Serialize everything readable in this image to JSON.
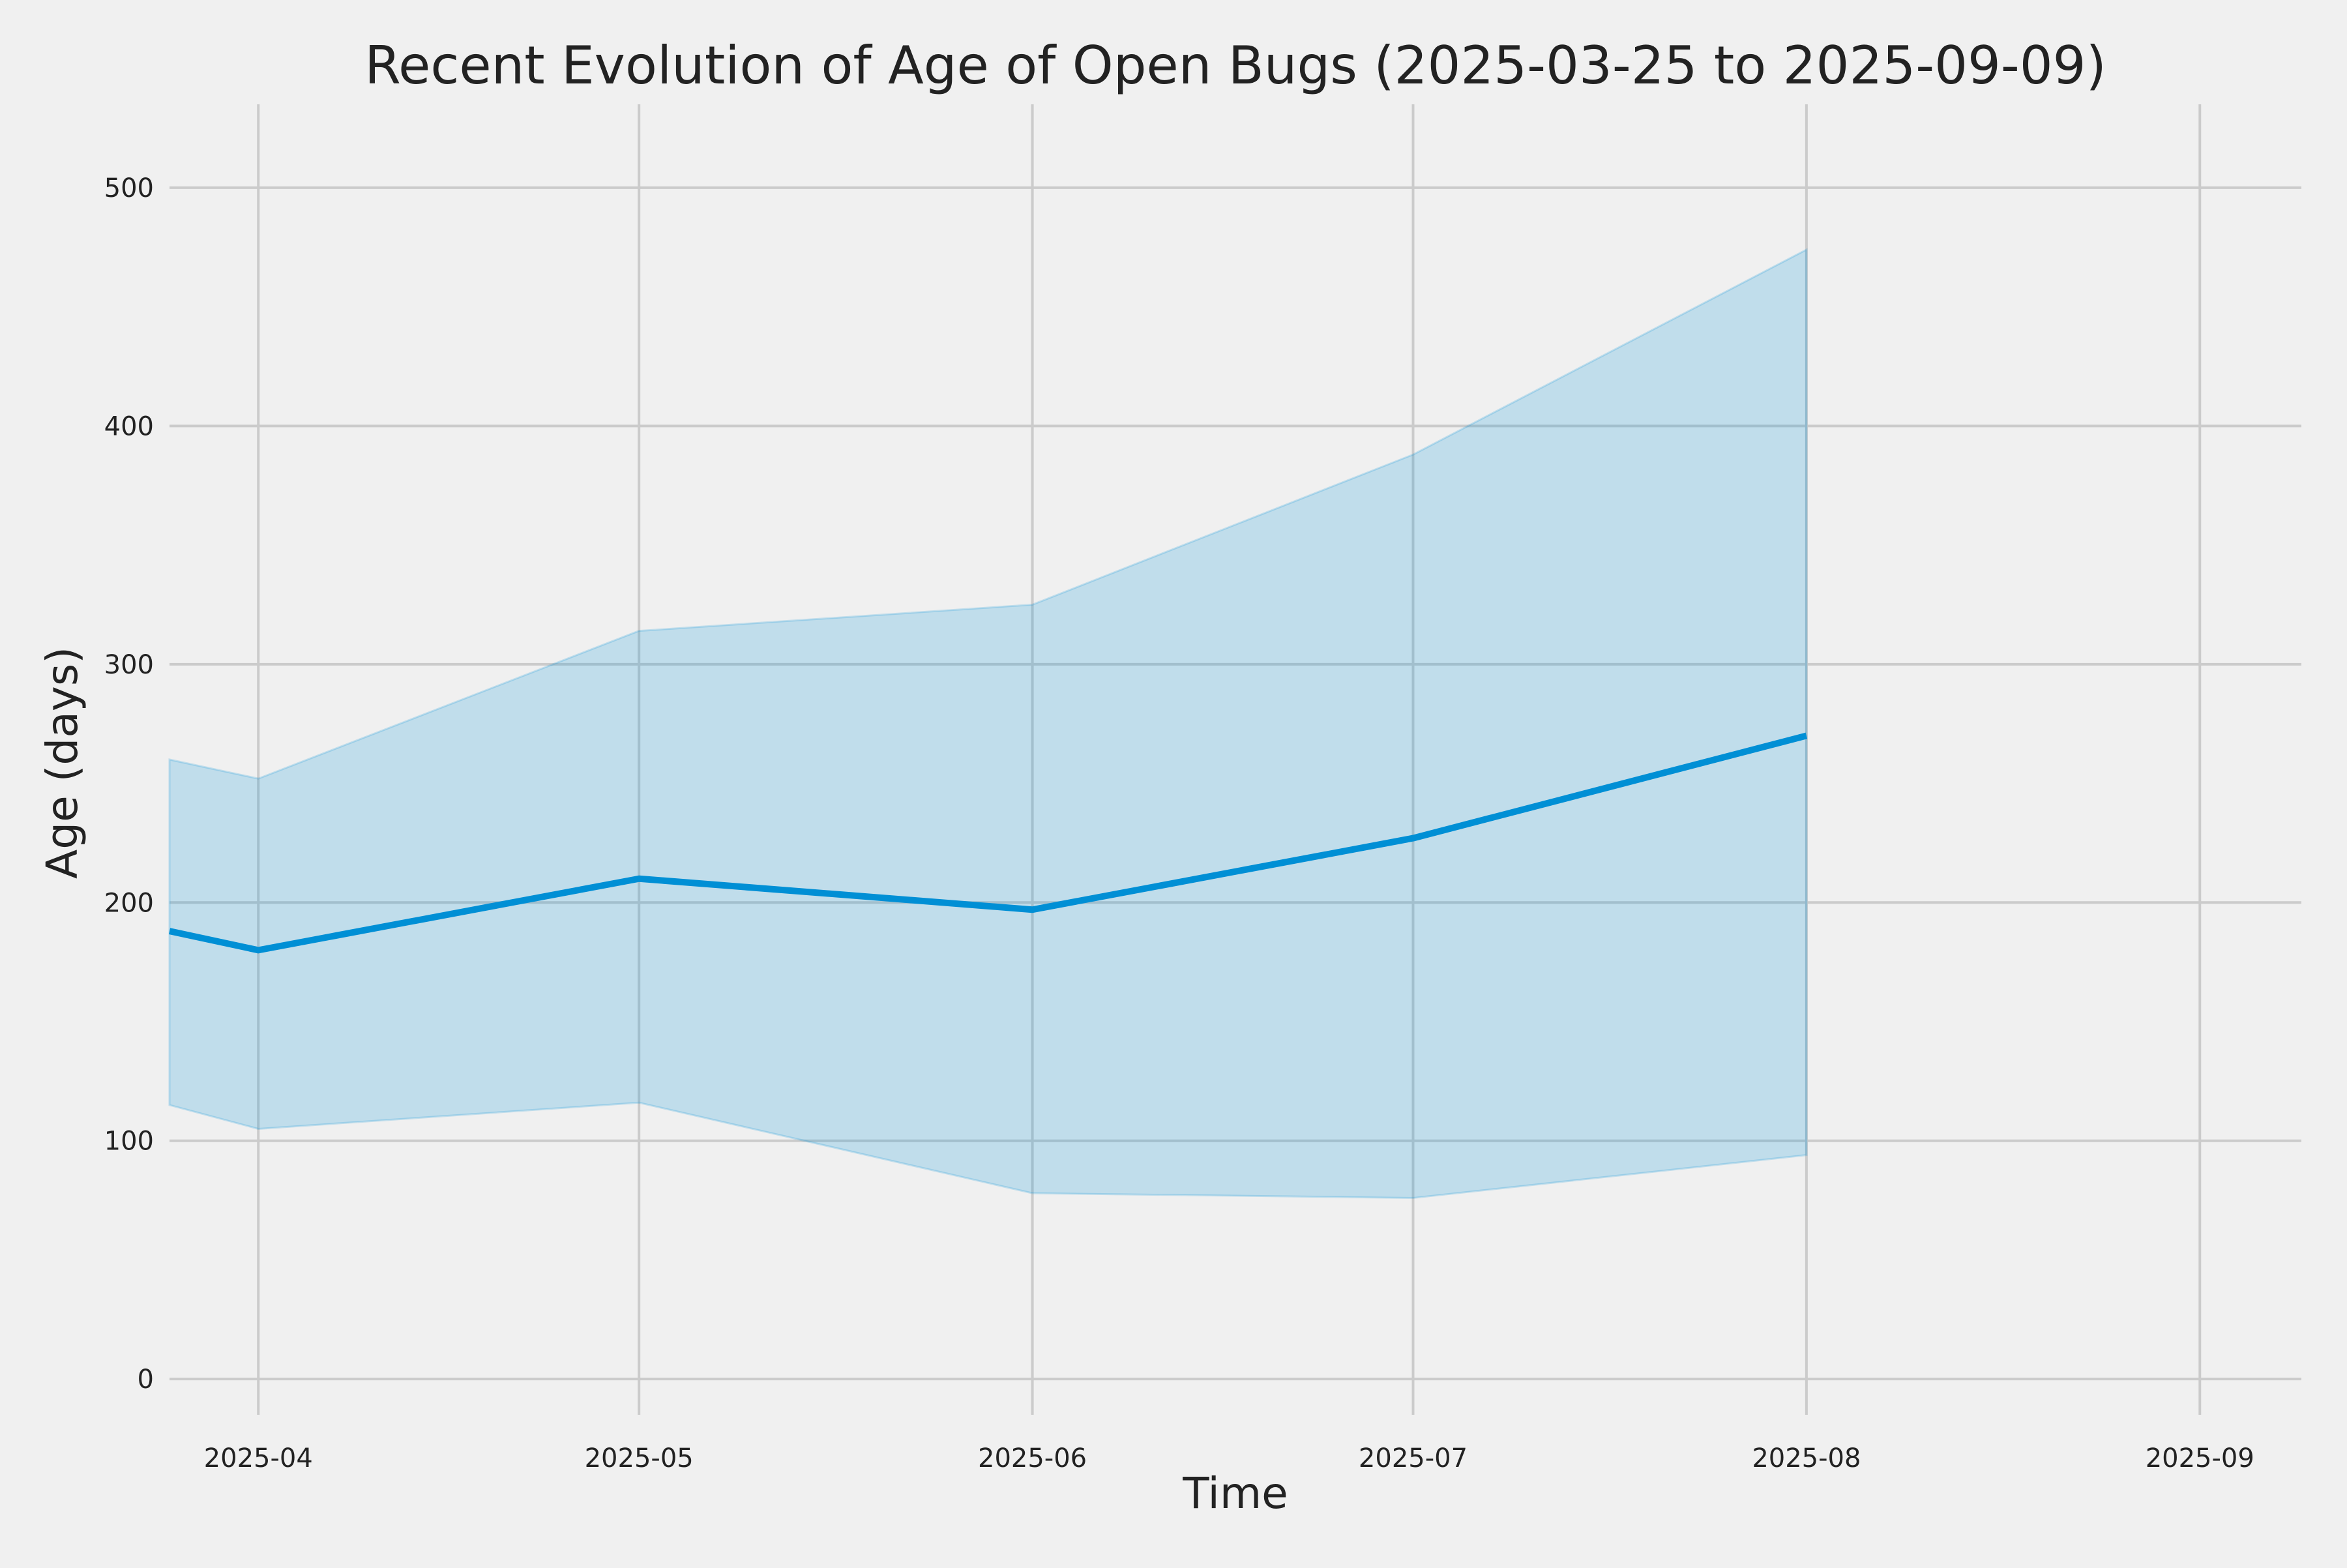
{
  "chart_data": {
    "type": "area",
    "title": "Recent Evolution of Age of Open Bugs (2025-03-25 to 2025-09-09)",
    "xlabel": "Time",
    "ylabel": "Age (days)",
    "xlim": [
      "2025-03-25",
      "2025-09-09"
    ],
    "ylim": [
      -15,
      535
    ],
    "grid": true,
    "x_ticks": [
      "2025-04",
      "2025-05",
      "2025-06",
      "2025-07",
      "2025-08",
      "2025-09"
    ],
    "y_ticks": [
      0,
      100,
      200,
      300,
      400,
      500
    ],
    "series": [
      {
        "type": "line",
        "x": [
          "2025-03-25",
          "2025-04-01",
          "2025-05-01",
          "2025-06-01",
          "2025-07-01",
          "2025-08-01"
        ],
        "y": [
          188,
          180,
          210,
          197,
          227,
          270
        ]
      },
      {
        "type": "band",
        "x": [
          "2025-03-25",
          "2025-04-01",
          "2025-05-01",
          "2025-06-01",
          "2025-07-01",
          "2025-08-01"
        ],
        "lower": [
          115,
          105,
          116,
          78,
          76,
          94
        ],
        "upper": [
          260,
          252,
          314,
          325,
          388,
          474
        ]
      }
    ],
    "colors": {
      "background": "#f0f0f0",
      "grid": "#cbcbcb",
      "line": "#008fd5",
      "band": "#008fd5"
    }
  }
}
